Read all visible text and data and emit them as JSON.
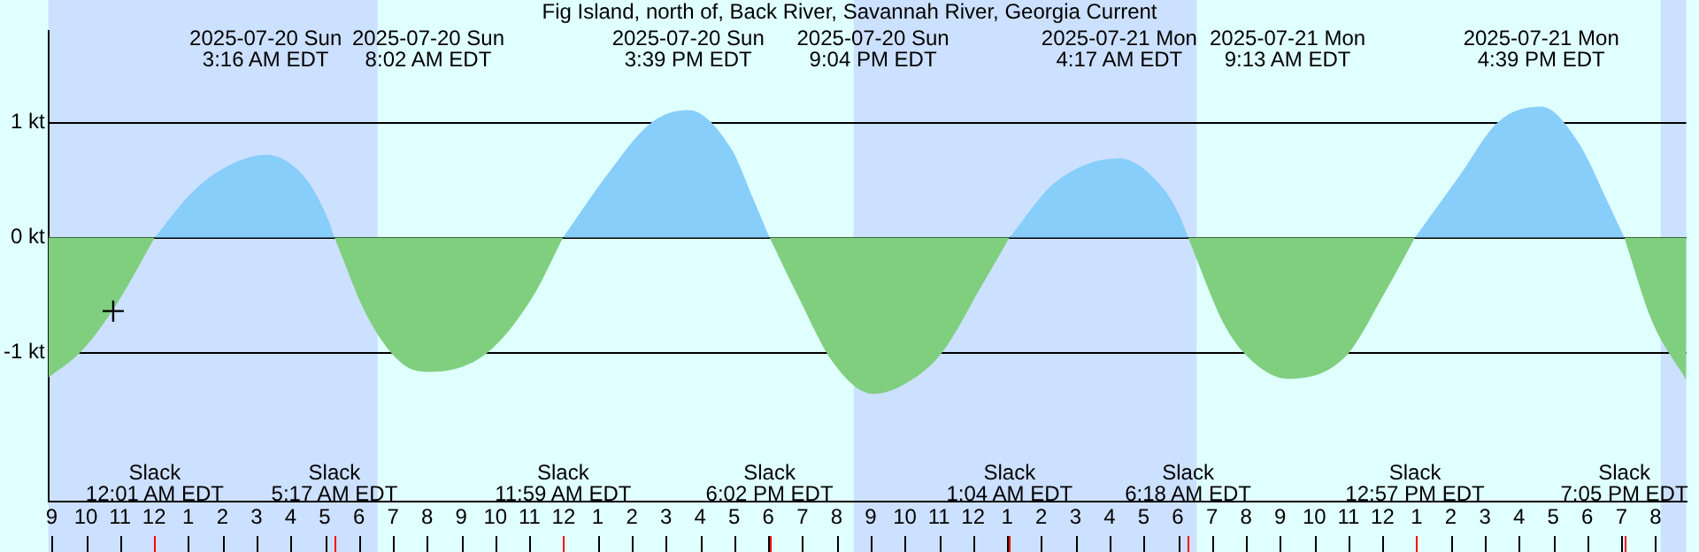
{
  "chart_data": {
    "type": "area",
    "title": "Fig Island, north of, Back River, Savannah River, Georgia Current",
    "x": [
      "2025-07-19T20:54",
      "2025-07-19T21:54",
      "2025-07-19T22:54",
      "2025-07-20T00:01",
      "2025-07-20T01:04",
      "2025-07-20T01:54",
      "2025-07-20T03:16",
      "2025-07-20T04:24",
      "2025-07-20T05:04",
      "2025-07-20T05:17",
      "2025-07-20T06:14",
      "2025-07-20T07:14",
      "2025-07-20T08:02",
      "2025-07-20T09:44",
      "2025-07-20T11:04",
      "2025-07-20T11:59",
      "2025-07-20T13:14",
      "2025-07-20T14:34",
      "2025-07-20T15:39",
      "2025-07-20T16:54",
      "2025-07-20T17:34",
      "2025-07-20T18:02",
      "2025-07-20T18:54",
      "2025-07-20T19:54",
      "2025-07-20T21:04",
      "2025-07-20T21:54",
      "2025-07-20T23:04",
      "2025-07-21T00:14",
      "2025-07-21T01:04",
      "2025-07-21T02:24",
      "2025-07-21T04:17",
      "2025-07-21T05:34",
      "2025-07-21T06:04",
      "2025-07-21T06:18",
      "2025-07-21T07:24",
      "2025-07-21T08:14",
      "2025-07-21T09:13",
      "2025-07-21T10:54",
      "2025-07-21T12:04",
      "2025-07-21T12:57",
      "2025-07-21T14:14",
      "2025-07-21T15:24",
      "2025-07-21T16:39",
      "2025-07-21T17:44",
      "2025-07-21T18:34",
      "2025-07-21T19:05",
      "2025-07-21T19:54",
      "2025-07-21T20:54"
    ],
    "series": [
      {
        "color": "#87cefa",
        "values": [
          null,
          null,
          null,
          0,
          0.38,
          0.58,
          0.72,
          0.53,
          0.18,
          0,
          null,
          null,
          null,
          null,
          null,
          0,
          0.53,
          1.0,
          1.11,
          0.78,
          0.33,
          0,
          null,
          null,
          null,
          null,
          null,
          null,
          0,
          0.48,
          0.69,
          0.43,
          0.18,
          0,
          null,
          null,
          null,
          null,
          null,
          0,
          0.53,
          1.01,
          1.14,
          0.83,
          0.33,
          0,
          null,
          null
        ]
      },
      {
        "color": "#7fcf7f",
        "values": [
          -1.22,
          -0.98,
          -0.58,
          0,
          null,
          null,
          null,
          null,
          null,
          0,
          -0.68,
          -1.09,
          -1.17,
          -1.01,
          -0.53,
          0,
          null,
          null,
          null,
          null,
          null,
          0,
          -0.53,
          -1.09,
          -1.36,
          -1.29,
          -1.01,
          -0.43,
          0,
          null,
          null,
          null,
          null,
          0,
          -0.78,
          -1.09,
          -1.23,
          -1.04,
          -0.48,
          0,
          null,
          null,
          null,
          null,
          null,
          0,
          -0.73,
          -1.24
        ]
      },
      {
        "type": "scatter",
        "color": "#000000",
        "marker": "cross",
        "x": [
          "2025-07-19T22:48"
        ],
        "values": [
          -0.64
        ]
      }
    ],
    "legend": false,
    "grid": "y",
    "xlim": [
      "2025-07-19T20:54",
      "2025-07-21T20:54"
    ],
    "ylim": [
      -2.3,
      1.8
    ],
    "yticks": [
      {
        "value": 1,
        "label": "1 kt"
      },
      {
        "value": 0,
        "label": "0 kt"
      },
      {
        "value": -1,
        "label": "-1 kt"
      }
    ],
    "xticks": [
      {
        "value": "2025-07-19T21:00",
        "label": "9"
      },
      {
        "value": "2025-07-19T22:00",
        "label": "10"
      },
      {
        "value": "2025-07-19T23:00",
        "label": "11"
      },
      {
        "value": "2025-07-20T00:00",
        "label": "12"
      },
      {
        "value": "2025-07-20T01:00",
        "label": "1"
      },
      {
        "value": "2025-07-20T02:00",
        "label": "2"
      },
      {
        "value": "2025-07-20T03:00",
        "label": "3"
      },
      {
        "value": "2025-07-20T04:00",
        "label": "4"
      },
      {
        "value": "2025-07-20T05:00",
        "label": "5"
      },
      {
        "value": "2025-07-20T06:00",
        "label": "6"
      },
      {
        "value": "2025-07-20T07:00",
        "label": "7"
      },
      {
        "value": "2025-07-20T08:00",
        "label": "8"
      },
      {
        "value": "2025-07-20T09:00",
        "label": "9"
      },
      {
        "value": "2025-07-20T10:00",
        "label": "10"
      },
      {
        "value": "2025-07-20T11:00",
        "label": "11"
      },
      {
        "value": "2025-07-20T12:00",
        "label": "12"
      },
      {
        "value": "2025-07-20T13:00",
        "label": "1"
      },
      {
        "value": "2025-07-20T14:00",
        "label": "2"
      },
      {
        "value": "2025-07-20T15:00",
        "label": "3"
      },
      {
        "value": "2025-07-20T16:00",
        "label": "4"
      },
      {
        "value": "2025-07-20T17:00",
        "label": "5"
      },
      {
        "value": "2025-07-20T18:00",
        "label": "6"
      },
      {
        "value": "2025-07-20T19:00",
        "label": "7"
      },
      {
        "value": "2025-07-20T20:00",
        "label": "8"
      },
      {
        "value": "2025-07-20T21:00",
        "label": "9"
      },
      {
        "value": "2025-07-20T22:00",
        "label": "10"
      },
      {
        "value": "2025-07-20T23:00",
        "label": "11"
      },
      {
        "value": "2025-07-21T00:00",
        "label": "12"
      },
      {
        "value": "2025-07-21T01:00",
        "label": "1"
      },
      {
        "value": "2025-07-21T02:00",
        "label": "2"
      },
      {
        "value": "2025-07-21T03:00",
        "label": "3"
      },
      {
        "value": "2025-07-21T04:00",
        "label": "4"
      },
      {
        "value": "2025-07-21T05:00",
        "label": "5"
      },
      {
        "value": "2025-07-21T06:00",
        "label": "6"
      },
      {
        "value": "2025-07-21T07:00",
        "label": "7"
      },
      {
        "value": "2025-07-21T08:00",
        "label": "8"
      },
      {
        "value": "2025-07-21T09:00",
        "label": "9"
      },
      {
        "value": "2025-07-21T10:00",
        "label": "10"
      },
      {
        "value": "2025-07-21T11:00",
        "label": "11"
      },
      {
        "value": "2025-07-21T12:00",
        "label": "12"
      },
      {
        "value": "2025-07-21T13:00",
        "label": "1"
      },
      {
        "value": "2025-07-21T14:00",
        "label": "2"
      },
      {
        "value": "2025-07-21T15:00",
        "label": "3"
      },
      {
        "value": "2025-07-21T16:00",
        "label": "4"
      },
      {
        "value": "2025-07-21T17:00",
        "label": "5"
      },
      {
        "value": "2025-07-21T18:00",
        "label": "6"
      },
      {
        "value": "2025-07-21T19:00",
        "label": "7"
      },
      {
        "value": "2025-07-21T20:00",
        "label": "8"
      }
    ],
    "bands": [
      {
        "axis": "x",
        "from": "2025-07-19T20:54",
        "to": "2025-07-20T06:33",
        "color": "#cce0ff"
      },
      {
        "axis": "x",
        "from": "2025-07-20T20:30",
        "to": "2025-07-21T06:33",
        "color": "#cce0ff"
      },
      {
        "axis": "x",
        "from": "2025-07-21T20:09",
        "to": "2025-07-21T20:54",
        "color": "#cce0ff"
      }
    ],
    "annotations": [
      "Slack\n12:01 AM EDT",
      "2025-07-20 Sun\n3:16 AM EDT",
      "Slack\n5:17 AM EDT",
      "2025-07-20 Sun\n8:02 AM EDT",
      "Slack\n11:59 AM EDT",
      "2025-07-20 Sun\n3:39 PM EDT",
      "Slack\n6:02 PM EDT",
      "2025-07-20 Sun\n9:04 PM EDT",
      "Slack\n1:04 AM EDT",
      "2025-07-21 Mon\n4:17 AM EDT",
      "Slack\n6:18 AM EDT",
      "2025-07-21 Mon\n9:13 AM EDT",
      "Slack\n12:57 PM EDT",
      "2025-07-21 Mon\n4:39 PM EDT",
      "Slack\n7:05 PM EDT"
    ]
  }
}
